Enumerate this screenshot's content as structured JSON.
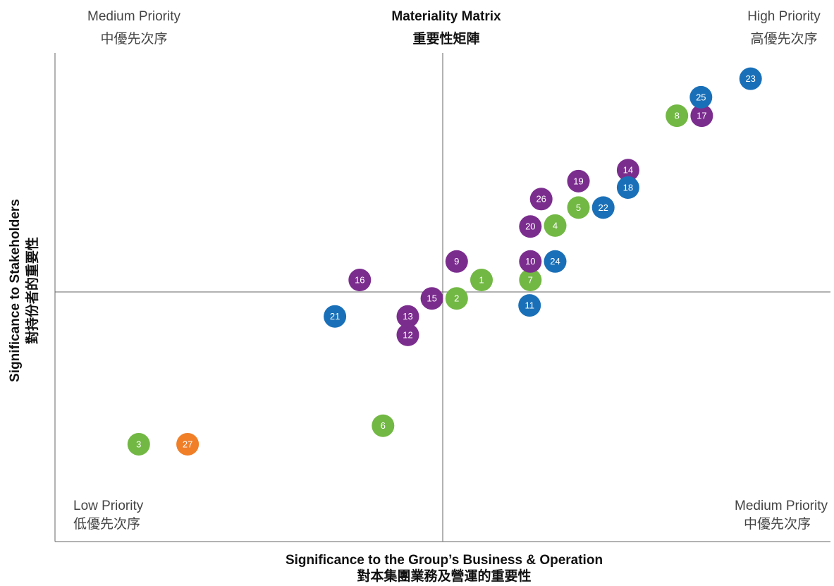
{
  "chart_data": {
    "type": "scatter",
    "title": "Materiality Matrix",
    "subtitle": "重要性矩陣",
    "x_label": [
      "Significance to the Group’s Business & Operation",
      "對本集團業務及營運的重要性"
    ],
    "y_label": [
      "Significance to Stakeholders",
      "對持份者的重要性"
    ],
    "quadrant_labels": {
      "top_left": [
        "Medium Priority",
        "中優先次序"
      ],
      "top_right": [
        "High Priority",
        "高優先次序"
      ],
      "bottom_left": [
        "Low Priority",
        "低優先次序"
      ],
      "bottom_right": [
        "Medium Priority",
        "中優先次序"
      ]
    },
    "xlim": [
      0,
      10
    ],
    "ylim": [
      0,
      10
    ],
    "series": [
      {
        "color": "#72b844",
        "labels": [
          "8",
          "5",
          "4",
          "1",
          "7",
          "2",
          "6",
          "3"
        ],
        "x": [
          8.02,
          6.75,
          6.45,
          5.5,
          6.13,
          5.18,
          4.23,
          1.08
        ],
        "values": [
          8.53,
          6.69,
          6.33,
          5.24,
          5.24,
          4.87,
          2.32,
          1.95
        ]
      },
      {
        "color": "#7b2d8e",
        "labels": [
          "17",
          "14",
          "19",
          "26",
          "20",
          "9",
          "10",
          "16",
          "15",
          "13",
          "12"
        ],
        "x": [
          8.34,
          7.39,
          6.75,
          6.27,
          6.13,
          5.18,
          6.13,
          3.93,
          4.86,
          4.55,
          4.55
        ],
        "values": [
          8.53,
          7.44,
          7.22,
          6.86,
          6.31,
          5.61,
          5.61,
          5.24,
          4.87,
          4.51,
          4.14
        ]
      },
      {
        "color": "#1a70b8",
        "labels": [
          "23",
          "25",
          "18",
          "22",
          "24",
          "11",
          "21"
        ],
        "x": [
          8.97,
          8.33,
          7.39,
          7.07,
          6.45,
          6.12,
          3.61
        ],
        "values": [
          9.27,
          8.9,
          7.09,
          6.69,
          5.61,
          4.73,
          4.51
        ]
      },
      {
        "color": "#f07f28",
        "labels": [
          "27"
        ],
        "x": [
          1.71
        ],
        "values": [
          1.95
        ]
      }
    ]
  }
}
